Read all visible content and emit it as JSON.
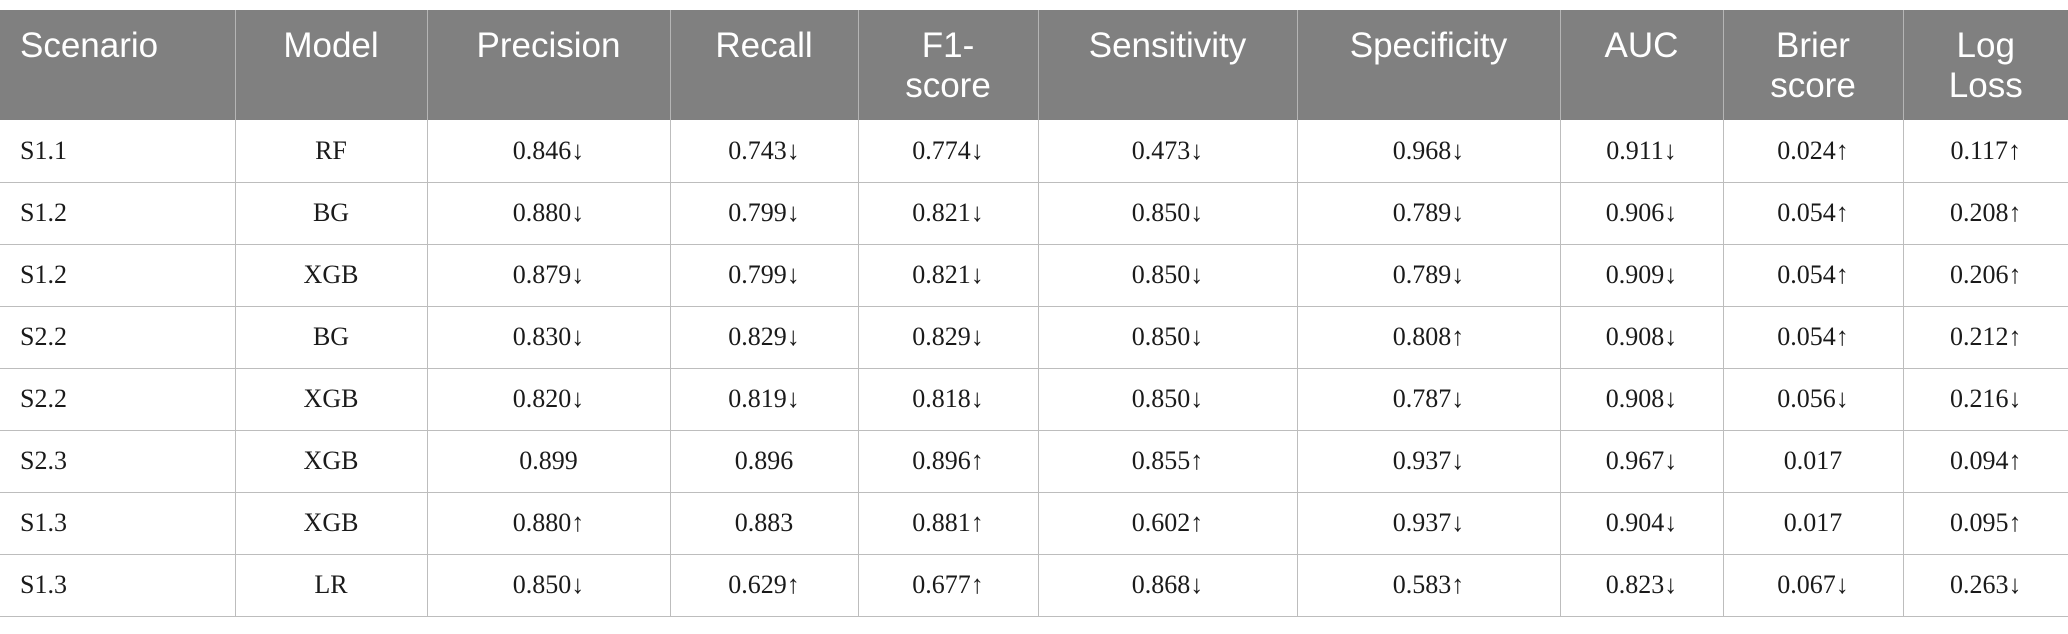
{
  "table": {
    "headers": [
      [
        "Scenario"
      ],
      [
        "Model"
      ],
      [
        "Precision"
      ],
      [
        "Recall"
      ],
      [
        "F1-",
        "score"
      ],
      [
        "Sensitivity"
      ],
      [
        "Specificity"
      ],
      [
        "AUC"
      ],
      [
        "Brier",
        "score"
      ],
      [
        "Log",
        "Loss"
      ]
    ],
    "rows": [
      [
        "S1.1",
        "RF",
        "0.846↓",
        "0.743↓",
        "0.774↓",
        "0.473↓",
        "0.968↓",
        "0.911↓",
        "0.024↑",
        "0.117↑"
      ],
      [
        "S1.2",
        "BG",
        "0.880↓",
        "0.799↓",
        "0.821↓",
        "0.850↓",
        "0.789↓",
        "0.906↓",
        "0.054↑",
        "0.208↑"
      ],
      [
        "S1.2",
        "XGB",
        "0.879↓",
        "0.799↓",
        "0.821↓",
        "0.850↓",
        "0.789↓",
        "0.909↓",
        "0.054↑",
        "0.206↑"
      ],
      [
        "S2.2",
        "BG",
        "0.830↓",
        "0.829↓",
        "0.829↓",
        "0.850↓",
        "0.808↑",
        "0.908↓",
        "0.054↑",
        "0.212↑"
      ],
      [
        "S2.2",
        "XGB",
        "0.820↓",
        "0.819↓",
        "0.818↓",
        "0.850↓",
        "0.787↓",
        "0.908↓",
        "0.056↓",
        "0.216↓"
      ],
      [
        "S2.3",
        "XGB",
        "0.899",
        "0.896",
        "0.896↑",
        "0.855↑",
        "0.937↓",
        "0.967↓",
        "0.017",
        "0.094↑"
      ],
      [
        "S1.3",
        "XGB",
        "0.880↑",
        "0.883",
        "0.881↑",
        "0.602↑",
        "0.937↓",
        "0.904↓",
        "0.017",
        "0.095↑"
      ],
      [
        "S1.3",
        "LR",
        "0.850↓",
        "0.629↑",
        "0.677↑",
        "0.868↓",
        "0.583↑",
        "0.823↓",
        "0.067↓",
        "0.263↓"
      ]
    ]
  },
  "colors": {
    "header_bg": "#808080",
    "header_text": "#ffffff",
    "grid": "#bdbdbd"
  }
}
